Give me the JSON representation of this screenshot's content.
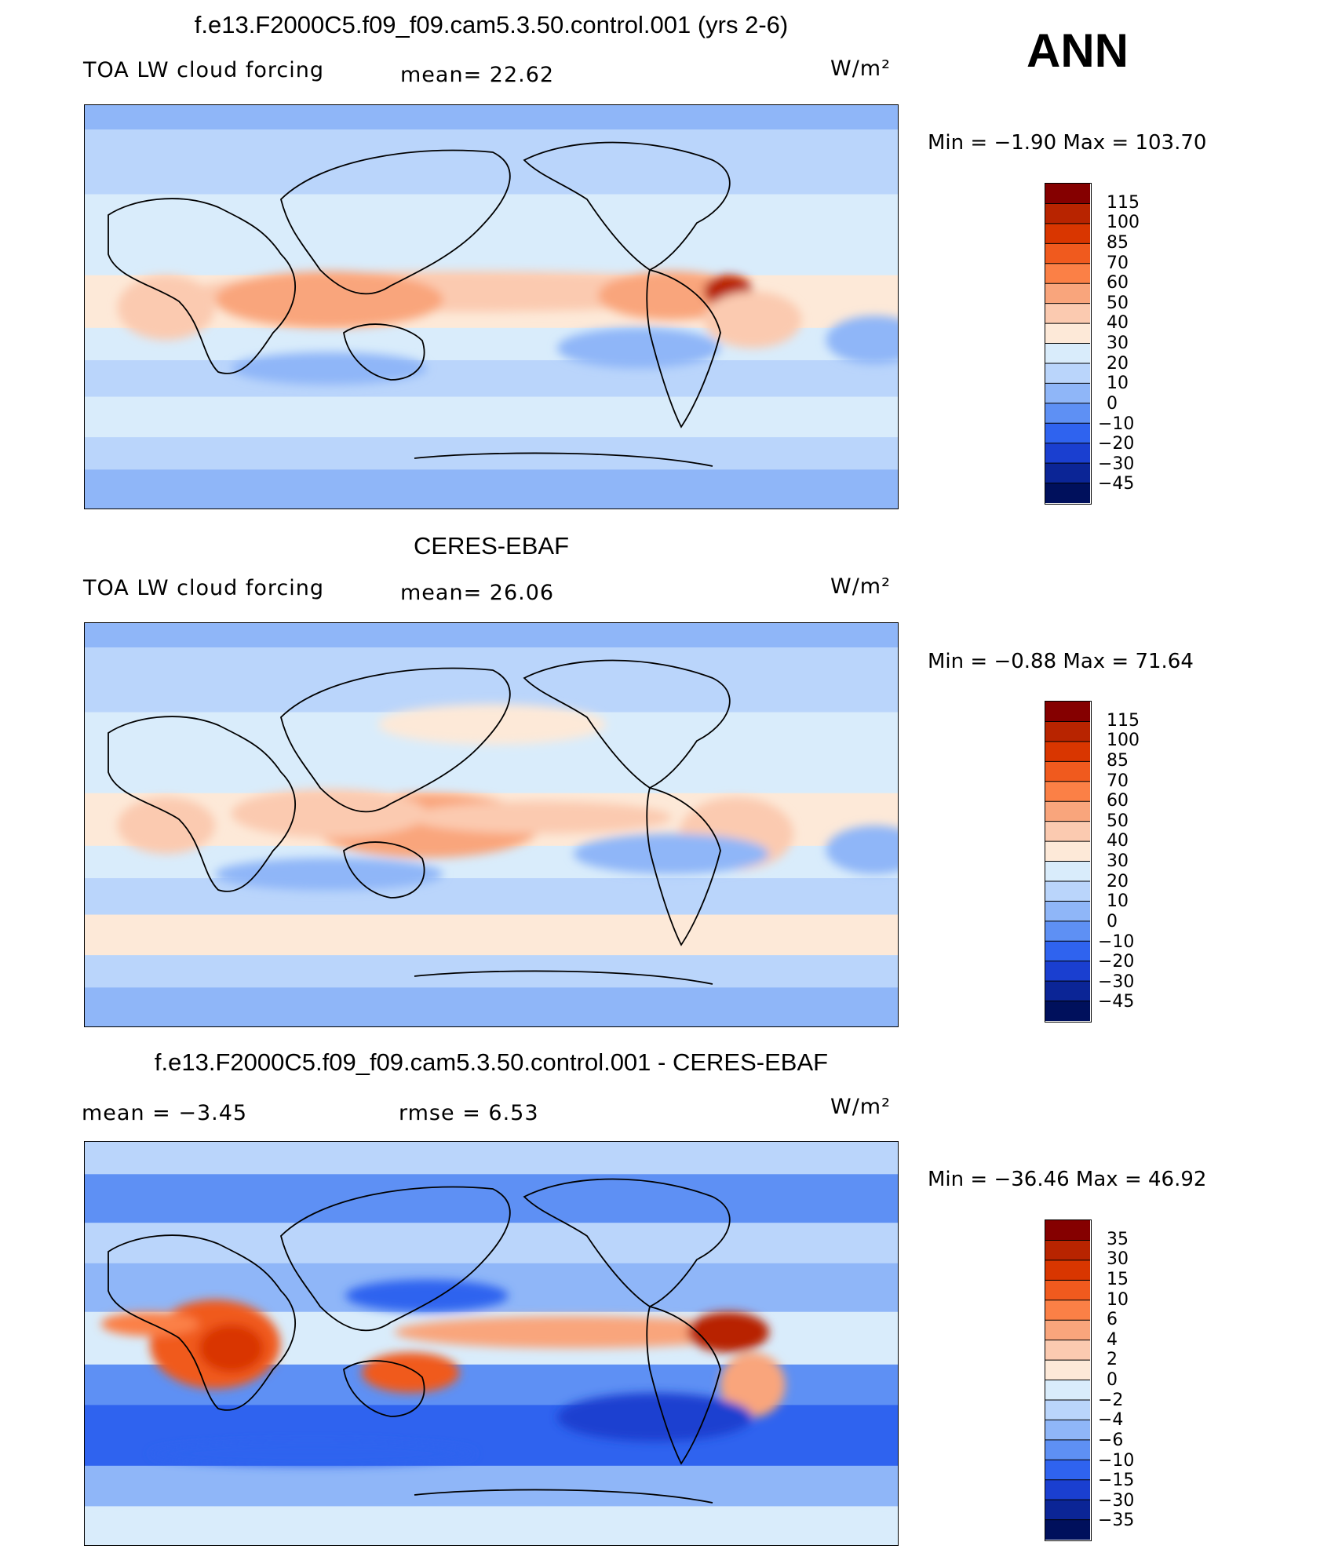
{
  "season": "ANN",
  "panels": [
    {
      "title": "f.e13.F2000C5.f09_f09.cam5.3.50.control.001 (yrs 2-6)",
      "left_label": "TOA LW cloud forcing",
      "mid_label": "mean=  22.62",
      "units": "W/m²",
      "minmax": "Min =   −1.90 Max = 103.70",
      "levels": [
        "115",
        "100",
        "85",
        "70",
        "60",
        "50",
        "40",
        "30",
        "20",
        "10",
        "0",
        "−10",
        "−20",
        "−30",
        "−45"
      ]
    },
    {
      "title": "CERES-EBAF",
      "left_label": "TOA LW cloud forcing",
      "mid_label": "mean=  26.06",
      "units": "W/m²",
      "minmax": "Min =   −0.88 Max =   71.64",
      "levels": [
        "115",
        "100",
        "85",
        "70",
        "60",
        "50",
        "40",
        "30",
        "20",
        "10",
        "0",
        "−10",
        "−20",
        "−30",
        "−45"
      ]
    },
    {
      "title": "f.e13.F2000C5.f09_f09.cam5.3.50.control.001 - CERES-EBAF",
      "left_label": "mean =   −3.45",
      "mid_label": "rmse =    6.53",
      "units": "W/m²",
      "minmax": "Min = −36.46 Max =   46.92",
      "levels": [
        "35",
        "30",
        "15",
        "10",
        "6",
        "4",
        "2",
        "0",
        "−2",
        "−4",
        "−6",
        "−10",
        "−15",
        "−30",
        "−35"
      ]
    }
  ],
  "chart_data": [
    {
      "type": "heatmap",
      "title": "f.e13.F2000C5.f09_f09.cam5.3.50.control.001 (yrs 2-6)",
      "variable": "TOA LW cloud forcing",
      "units": "W/m²",
      "mean": 22.62,
      "min": -1.9,
      "max": 103.7,
      "colorbar_levels": [
        115,
        100,
        85,
        70,
        60,
        50,
        40,
        30,
        20,
        10,
        0,
        -10,
        -20,
        -30,
        -45
      ]
    },
    {
      "type": "heatmap",
      "title": "CERES-EBAF",
      "variable": "TOA LW cloud forcing",
      "units": "W/m²",
      "mean": 26.06,
      "min": -0.88,
      "max": 71.64,
      "colorbar_levels": [
        115,
        100,
        85,
        70,
        60,
        50,
        40,
        30,
        20,
        10,
        0,
        -10,
        -20,
        -30,
        -45
      ]
    },
    {
      "type": "heatmap",
      "title": "f.e13.F2000C5.f09_f09.cam5.3.50.control.001 - CERES-EBAF",
      "units": "W/m²",
      "mean": -3.45,
      "rmse": 6.53,
      "min": -36.46,
      "max": 46.92,
      "colorbar_levels": [
        35,
        30,
        15,
        10,
        6,
        4,
        2,
        0,
        -2,
        -4,
        -6,
        -10,
        -15,
        -30,
        -35
      ]
    }
  ],
  "colors": {
    "scale": [
      "#850000",
      "#b82400",
      "#d93600",
      "#f05a1e",
      "#fb8046",
      "#f9a57c",
      "#fbcab0",
      "#fde9d8",
      "#d9ecfb",
      "#bad5fb",
      "#8fb6f8",
      "#5e90f4",
      "#2f63ef",
      "#1a3fd0",
      "#0b2596",
      "#00105c"
    ]
  }
}
